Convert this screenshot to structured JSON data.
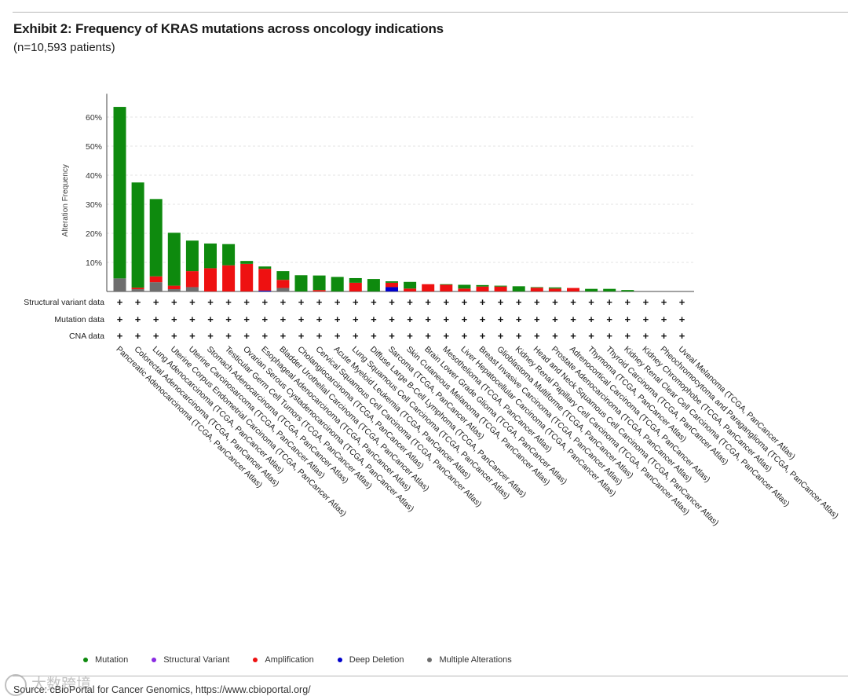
{
  "header": {
    "title": "Exhibit 2: Frequency of KRAS mutations across oncology indications",
    "subtitle": "(n=10,593 patients)"
  },
  "footer": {
    "source": "Source: cBioPortal for Cancer Genomics, https://www.cbioportal.org/"
  },
  "watermark": {
    "text": "大数跨境"
  },
  "colors": {
    "mutation": "#0e8a0e",
    "structural_variant": "#8a2be2",
    "amplification": "#ee1111",
    "deep_deletion": "#0000cc",
    "multiple": "#6e6e6e"
  },
  "chart_data": {
    "type": "bar",
    "stacked": true,
    "ylabel": "Alteration Frequency",
    "ylim": [
      0,
      68
    ],
    "yticks": [
      10,
      20,
      30,
      40,
      50,
      60
    ],
    "ytick_labels": [
      "10%",
      "20%",
      "30%",
      "40%",
      "50%",
      "60%"
    ],
    "grid": true,
    "categories": [
      "Pancreatic Adenocarcinoma (TCGA, PanCancer Atlas)",
      "Colorectal Adenocarcinoma (TCGA, PanCancer Atlas)",
      "Lung Adenocarcinoma (TCGA, PanCancer Atlas)",
      "Uterine Corpus Endometrial Carcinoma (TCGA, PanCancer Atlas)",
      "Uterine Carcinosarcoma (TCGA, PanCancer Atlas)",
      "Stomach Adenocarcinoma (TCGA, PanCancer Atlas)",
      "Testicular Germ Cell Tumors (TCGA, PanCancer Atlas)",
      "Ovarian Serous Cystadenocarcinoma (TCGA, PanCancer Atlas)",
      "Esophageal Adenocarcinoma (TCGA, PanCancer Atlas)",
      "Bladder Urothelial Carcinoma (TCGA, PanCancer Atlas)",
      "Cholangiocarcinoma (TCGA, PanCancer Atlas)",
      "Cervical Squamous Cell Carcinoma (TCGA, PanCancer Atlas)",
      "Acute Myeloid Leukemia (TCGA, PanCancer Atlas)",
      "Lung Squamous Cell Carcinoma (TCGA, PanCancer Atlas)",
      "Diffuse Large B-Cell Lymphoma (TCGA, PanCancer Atlas)",
      "Sarcoma (TCGA, PanCancer Atlas)",
      "Skin Cutaneous Melanoma (TCGA, PanCancer Atlas)",
      "Brain Lower Grade Glioma (TCGA, PanCancer Atlas)",
      "Mesothelioma (TCGA, PanCancer Atlas)",
      "Liver Hepatocellular Carcinoma (TCGA, PanCancer Atlas)",
      "Breast Invasive Carcinoma (TCGA, PanCancer Atlas)",
      "Glioblastoma Multiforme (TCGA, PanCancer Atlas)",
      "Kidney Renal Papillary Cell Carcinoma (TCGA, PanCancer Atlas)",
      "Head and Neck Squamous Cell Carcinoma (TCGA, PanCancer Atlas)",
      "Prostate Adenocarcinoma (TCGA, PanCancer Atlas)",
      "Adrenocortical Carcinoma (TCGA, PanCancer Atlas)",
      "Thymoma (TCGA, PanCancer Atlas)",
      "Thyroid Carcinoma (TCGA, PanCancer Atlas)",
      "Kidney Renal Clear Cell Carcinoma (TCGA, PanCancer Atlas)",
      "Kidney Chromophobe (TCGA, PanCancer Atlas)",
      "Pheochromocytoma and Paraganglioma (TCGA, PanCancer Atlas)",
      "Uveal Melanoma (TCGA, PanCancer Atlas)"
    ],
    "series": [
      {
        "name": "Multiple Alterations",
        "color": "#6e6e6e",
        "values": [
          4.5,
          0.8,
          3.2,
          0.8,
          1.5,
          0,
          0,
          0,
          0,
          1.2,
          0,
          0,
          0,
          0,
          0,
          0,
          0,
          0,
          0,
          0,
          0,
          0,
          0,
          0,
          0,
          0,
          0,
          0,
          0,
          0,
          0,
          0
        ]
      },
      {
        "name": "Deep Deletion",
        "color": "#0000cc",
        "values": [
          0,
          0,
          0,
          0,
          0,
          0,
          0,
          0,
          0.3,
          0,
          0,
          0,
          0,
          0,
          0,
          1.5,
          0,
          0,
          0,
          0,
          0,
          0,
          0,
          0,
          0,
          0,
          0,
          0,
          0,
          0,
          0,
          0
        ]
      },
      {
        "name": "Amplification",
        "color": "#ee1111",
        "values": [
          0,
          0.5,
          2.0,
          1.2,
          5.5,
          8.0,
          9.0,
          9.5,
          7.5,
          2.8,
          0,
          0.5,
          0,
          3.0,
          0,
          1.5,
          1.0,
          2.5,
          2.3,
          1.0,
          1.7,
          1.7,
          0,
          1.3,
          1.0,
          1.2,
          0,
          0,
          0,
          0,
          0,
          0
        ]
      },
      {
        "name": "Mutation",
        "color": "#0e8a0e",
        "values": [
          59.0,
          36.2,
          26.6,
          18.2,
          10.5,
          8.5,
          7.3,
          1.0,
          0.8,
          3.0,
          5.6,
          5.0,
          5.0,
          1.6,
          4.3,
          0.5,
          2.3,
          0,
          0.2,
          1.3,
          0.5,
          0.3,
          1.8,
          0.2,
          0.4,
          0,
          0.9,
          0.9,
          0.5,
          0,
          0,
          0
        ]
      },
      {
        "name": "Structural Variant",
        "color": "#8a2be2",
        "values": [
          0,
          0,
          0,
          0,
          0,
          0,
          0,
          0,
          0,
          0,
          0,
          0,
          0,
          0,
          0,
          0,
          0,
          0,
          0,
          0,
          0,
          0,
          0,
          0,
          0,
          0,
          0,
          0,
          0,
          0,
          0,
          0
        ]
      }
    ],
    "profile_rows": [
      "Structural variant data",
      "Mutation data",
      "CNA data"
    ],
    "profile_marker": "+",
    "legend": [
      {
        "label": "Mutation",
        "color": "#0e8a0e"
      },
      {
        "label": "Structural Variant",
        "color": "#8a2be2"
      },
      {
        "label": "Amplification",
        "color": "#ee1111"
      },
      {
        "label": "Deep Deletion",
        "color": "#0000cc"
      },
      {
        "label": "Multiple Alterations",
        "color": "#6e6e6e"
      }
    ],
    "legend_position": "bottom"
  }
}
